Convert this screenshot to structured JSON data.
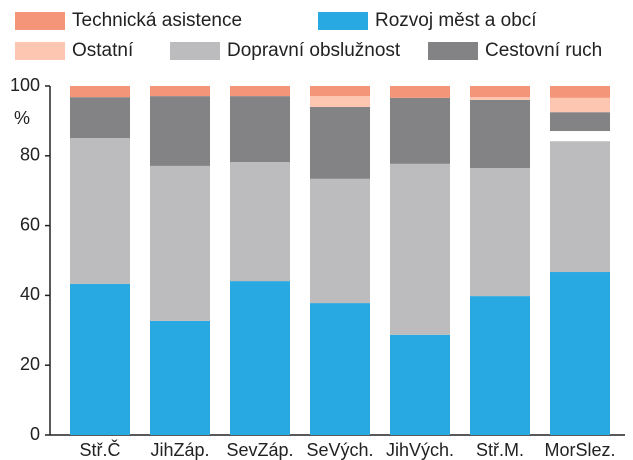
{
  "chart_data": {
    "type": "stacked_bar",
    "ylabel": "%",
    "categories": [
      "Stř.Č",
      "JihZáp.",
      "SevZáp.",
      "SeVých.",
      "JihVých.",
      "Stř.M.",
      "MorSlez."
    ],
    "series": [
      {
        "name": "Rozvoj měst a obcí",
        "color": "#29a9e1",
        "values": [
          43.3,
          32.7,
          44.1,
          37.8,
          28.7,
          39.8,
          46.7
        ]
      },
      {
        "name": "Dopravní obslužnost",
        "color": "#bcbcbf",
        "values": [
          41.8,
          44.4,
          34.1,
          35.6,
          49.0,
          36.7,
          37.5
        ]
      },
      {
        "color": "#ffffff",
        "values": [
          0,
          0,
          0,
          0,
          0,
          0,
          2.9
        ]
      },
      {
        "name": "Cestovní ruch",
        "color": "#838386",
        "values": [
          11.7,
          20.0,
          18.9,
          20.6,
          18.9,
          19.5,
          5.4
        ]
      },
      {
        "name": "Ostatní",
        "color": "#fcc6b0",
        "values": [
          0,
          0,
          0,
          3.1,
          0,
          0.8,
          4.1
        ]
      },
      {
        "name": "Technická asistence",
        "color": "#f4957a",
        "values": [
          3.2,
          2.9,
          2.9,
          2.9,
          3.4,
          3.2,
          3.4
        ]
      }
    ],
    "ylim": [
      0,
      100
    ],
    "yticks": [
      0,
      20,
      40,
      60,
      80,
      100
    ]
  }
}
